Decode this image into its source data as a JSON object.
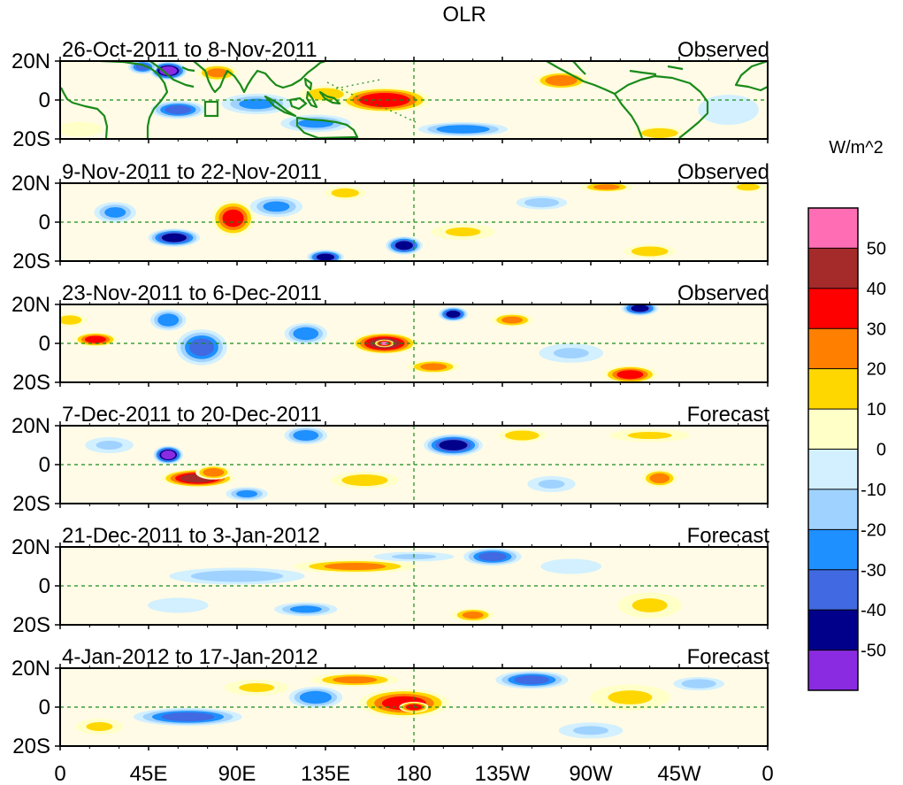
{
  "title": "OLR",
  "units_label": "W/m^2",
  "colors": {
    "land_outline": "#1a8a1a",
    "ocean": "#ffffff"
  },
  "colorbar": {
    "tick_labels": [
      "50",
      "40",
      "30",
      "20",
      "10",
      "0",
      "-10",
      "-20",
      "-30",
      "-40",
      "-50"
    ],
    "colors": [
      "#ff6eb4",
      "#a52a2a",
      "#ff0000",
      "#ff7f00",
      "#ffd700",
      "#ffffc8",
      "#d2f0ff",
      "#a0d2ff",
      "#1e90ff",
      "#4169e1",
      "#00008b",
      "#8a2be2"
    ]
  },
  "x_axis": {
    "tick_labels": [
      "0",
      "45E",
      "90E",
      "135E",
      "180",
      "135W",
      "90W",
      "45W",
      "0"
    ],
    "lon_ticks": [
      0,
      45,
      90,
      135,
      180,
      225,
      270,
      315,
      360
    ]
  },
  "y_axis": {
    "tick_labels": [
      "20N",
      "0",
      "20S"
    ],
    "lat_ticks": [
      20,
      0,
      -20
    ]
  },
  "panels": [
    {
      "date_range": "26-Oct-2011 to 8-Nov-2011",
      "status": "Observed",
      "anomalies": [
        {
          "lon": 55,
          "lat": 15,
          "value": -55,
          "dlon": 10,
          "dlat": 5
        },
        {
          "lon": 42,
          "lat": 17,
          "value": -35,
          "dlon": 8,
          "dlat": 4
        },
        {
          "lon": 60,
          "lat": -5,
          "value": -35,
          "dlon": 15,
          "dlat": 5
        },
        {
          "lon": 100,
          "lat": -2,
          "value": -25,
          "dlon": 20,
          "dlat": 6
        },
        {
          "lon": 130,
          "lat": -12,
          "value": -25,
          "dlon": 20,
          "dlat": 5
        },
        {
          "lon": 165,
          "lat": 0,
          "value": 40,
          "dlon": 25,
          "dlat": 7
        },
        {
          "lon": 135,
          "lat": 3,
          "value": 22,
          "dlon": 15,
          "dlat": 5
        },
        {
          "lon": 205,
          "lat": -15,
          "value": -30,
          "dlon": 25,
          "dlat": 4
        },
        {
          "lon": 255,
          "lat": 10,
          "value": 30,
          "dlon": 15,
          "dlat": 5
        },
        {
          "lon": 80,
          "lat": 14,
          "value": 25,
          "dlon": 12,
          "dlat": 5
        },
        {
          "lon": 305,
          "lat": -17,
          "value": 22,
          "dlon": 15,
          "dlat": 4
        },
        {
          "lon": 340,
          "lat": -5,
          "value": -12,
          "dlon": 20,
          "dlat": 10
        },
        {
          "lon": 10,
          "lat": -15,
          "value": 12,
          "dlon": 15,
          "dlat": 5
        }
      ]
    },
    {
      "date_range": "9-Nov-2011 to 22-Nov-2011",
      "status": "Observed",
      "anomalies": [
        {
          "lon": 58,
          "lat": -8,
          "value": -45,
          "dlon": 14,
          "dlat": 5
        },
        {
          "lon": 88,
          "lat": 2,
          "value": 35,
          "dlon": 12,
          "dlat": 10
        },
        {
          "lon": 135,
          "lat": -18,
          "value": -45,
          "dlon": 10,
          "dlat": 4
        },
        {
          "lon": 175,
          "lat": -12,
          "value": -45,
          "dlon": 10,
          "dlat": 5
        },
        {
          "lon": 205,
          "lat": -5,
          "value": 15,
          "dlon": 20,
          "dlat": 5
        },
        {
          "lon": 110,
          "lat": 8,
          "value": -25,
          "dlon": 15,
          "dlat": 6
        },
        {
          "lon": 145,
          "lat": 15,
          "value": 20,
          "dlon": 12,
          "dlat": 4
        },
        {
          "lon": 28,
          "lat": 5,
          "value": -25,
          "dlon": 12,
          "dlat": 6
        },
        {
          "lon": 300,
          "lat": -15,
          "value": 22,
          "dlon": 15,
          "dlat": 4
        },
        {
          "lon": 278,
          "lat": 18,
          "value": 25,
          "dlon": 15,
          "dlat": 3
        },
        {
          "lon": 245,
          "lat": 10,
          "value": -20,
          "dlon": 15,
          "dlat": 4
        },
        {
          "lon": 350,
          "lat": 18,
          "value": 20,
          "dlon": 10,
          "dlat": 3
        }
      ]
    },
    {
      "date_range": "23-Nov-2011 to 6-Dec-2011",
      "status": "Observed",
      "anomalies": [
        {
          "lon": 18,
          "lat": 2,
          "value": 35,
          "dlon": 12,
          "dlat": 4
        },
        {
          "lon": 72,
          "lat": -2,
          "value": -35,
          "dlon": 14,
          "dlat": 10
        },
        {
          "lon": 55,
          "lat": 12,
          "value": -30,
          "dlon": 10,
          "dlat": 6
        },
        {
          "lon": 165,
          "lat": 0,
          "value": 45,
          "dlon": 18,
          "dlat": 6
        },
        {
          "lon": 165,
          "lat": 0,
          "value": 55,
          "dlon": 5,
          "dlat": 2
        },
        {
          "lon": 190,
          "lat": -12,
          "value": 25,
          "dlon": 15,
          "dlat": 4
        },
        {
          "lon": 200,
          "lat": 15,
          "value": -45,
          "dlon": 8,
          "dlat": 4
        },
        {
          "lon": 230,
          "lat": 12,
          "value": 25,
          "dlon": 12,
          "dlat": 4
        },
        {
          "lon": 290,
          "lat": -16,
          "value": 35,
          "dlon": 15,
          "dlat": 5
        },
        {
          "lon": 295,
          "lat": 18,
          "value": -45,
          "dlon": 10,
          "dlat": 4
        },
        {
          "lon": 125,
          "lat": 5,
          "value": -30,
          "dlon": 12,
          "dlat": 6
        },
        {
          "lon": 260,
          "lat": -5,
          "value": -15,
          "dlon": 20,
          "dlat": 6
        },
        {
          "lon": 5,
          "lat": 12,
          "value": 20,
          "dlon": 10,
          "dlat": 4
        }
      ]
    },
    {
      "date_range": "7-Dec-2011 to 20-Dec-2011",
      "status": "Forecast",
      "anomalies": [
        {
          "lon": 55,
          "lat": 5,
          "value": -55,
          "dlon": 8,
          "dlat": 5
        },
        {
          "lon": 70,
          "lat": -7,
          "value": 45,
          "dlon": 20,
          "dlat": 5
        },
        {
          "lon": 78,
          "lat": -4,
          "value": 30,
          "dlon": 10,
          "dlat": 4
        },
        {
          "lon": 200,
          "lat": 10,
          "value": -45,
          "dlon": 16,
          "dlat": 6
        },
        {
          "lon": 235,
          "lat": 15,
          "value": 22,
          "dlon": 14,
          "dlat": 4
        },
        {
          "lon": 125,
          "lat": 15,
          "value": -30,
          "dlon": 12,
          "dlat": 5
        },
        {
          "lon": 155,
          "lat": -8,
          "value": 20,
          "dlon": 20,
          "dlat": 5
        },
        {
          "lon": 305,
          "lat": -7,
          "value": 28,
          "dlon": 10,
          "dlat": 5
        },
        {
          "lon": 95,
          "lat": -15,
          "value": -25,
          "dlon": 12,
          "dlat": 4
        },
        {
          "lon": 300,
          "lat": 15,
          "value": 15,
          "dlon": 25,
          "dlat": 4
        },
        {
          "lon": 25,
          "lat": 10,
          "value": -15,
          "dlon": 15,
          "dlat": 5
        },
        {
          "lon": 250,
          "lat": -10,
          "value": -15,
          "dlon": 15,
          "dlat": 5
        }
      ]
    },
    {
      "date_range": "21-Dec-2011 to 3-Jan-2012",
      "status": "Forecast",
      "anomalies": [
        {
          "lon": 150,
          "lat": 10,
          "value": 25,
          "dlon": 35,
          "dlat": 4
        },
        {
          "lon": 220,
          "lat": 15,
          "value": -35,
          "dlon": 16,
          "dlat": 5
        },
        {
          "lon": 210,
          "lat": -15,
          "value": 25,
          "dlon": 12,
          "dlat": 4
        },
        {
          "lon": 90,
          "lat": 5,
          "value": -20,
          "dlon": 40,
          "dlat": 5
        },
        {
          "lon": 125,
          "lat": -12,
          "value": -25,
          "dlon": 18,
          "dlat": 4
        },
        {
          "lon": 300,
          "lat": -10,
          "value": 15,
          "dlon": 20,
          "dlat": 8
        },
        {
          "lon": 260,
          "lat": 10,
          "value": -12,
          "dlon": 20,
          "dlat": 5
        },
        {
          "lon": 60,
          "lat": -10,
          "value": -12,
          "dlon": 20,
          "dlat": 5
        },
        {
          "lon": 180,
          "lat": 15,
          "value": -15,
          "dlon": 25,
          "dlat": 3
        }
      ]
    },
    {
      "date_range": "4-Jan-2012 to 17-Jan-2012",
      "status": "Forecast",
      "anomalies": [
        {
          "lon": 175,
          "lat": 2,
          "value": 35,
          "dlon": 25,
          "dlat": 8
        },
        {
          "lon": 180,
          "lat": 0,
          "value": 40,
          "dlon": 8,
          "dlat": 3
        },
        {
          "lon": 150,
          "lat": 14,
          "value": 25,
          "dlon": 25,
          "dlat": 4
        },
        {
          "lon": 240,
          "lat": 14,
          "value": -35,
          "dlon": 20,
          "dlat": 5
        },
        {
          "lon": 65,
          "lat": -5,
          "value": -35,
          "dlon": 30,
          "dlat": 5
        },
        {
          "lon": 130,
          "lat": 5,
          "value": -30,
          "dlon": 15,
          "dlat": 6
        },
        {
          "lon": 290,
          "lat": 5,
          "value": 15,
          "dlon": 25,
          "dlat": 8
        },
        {
          "lon": 325,
          "lat": 12,
          "value": -20,
          "dlon": 15,
          "dlat": 4
        },
        {
          "lon": 100,
          "lat": 10,
          "value": 15,
          "dlon": 20,
          "dlat": 5
        },
        {
          "lon": 270,
          "lat": -12,
          "value": -15,
          "dlon": 20,
          "dlat": 5
        },
        {
          "lon": 20,
          "lat": -10,
          "value": 15,
          "dlon": 15,
          "dlat": 5
        }
      ]
    }
  ]
}
